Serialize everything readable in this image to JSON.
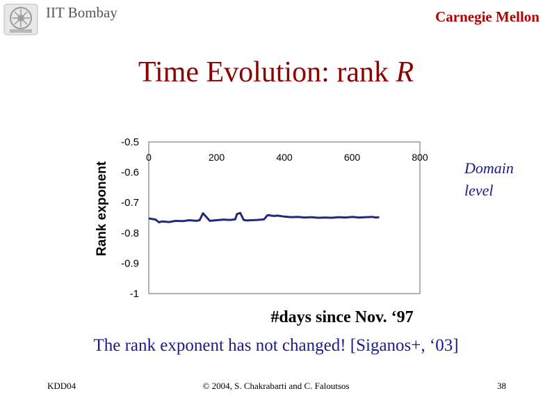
{
  "header": {
    "institution": "IIT Bombay",
    "organization": "Carnegie Mellon"
  },
  "slide": {
    "title_main": "Time Evolution: rank ",
    "title_var": "R",
    "annotation_line1": "Domain",
    "annotation_line2": "level",
    "x_caption": "#days since Nov. ‘97",
    "conclusion": "The rank exponent has not changed! [Siganos+, ‘03]"
  },
  "footer": {
    "left": "KDD04",
    "center": "© 2004, S. Chakrabarti and C. Faloutsos",
    "right": "38"
  },
  "colors": {
    "title": "#8b0000",
    "organization": "#b00000",
    "series": "#1f2a7a",
    "annotation": "#1a1a8c"
  },
  "chart_data": {
    "type": "line",
    "title": "",
    "xlabel": "#days since Nov. ‘97",
    "ylabel": "Rank exponent",
    "xlim": [
      0,
      800
    ],
    "ylim": [
      -1,
      -0.5
    ],
    "x_ticks": [
      0,
      200,
      400,
      600,
      800
    ],
    "x_tick_labels": [
      "0",
      "200",
      "400",
      "600",
      "800"
    ],
    "y_ticks": [
      -0.5,
      -0.6,
      -0.7,
      -0.8,
      -0.9,
      -1
    ],
    "y_tick_labels": [
      "-0.5",
      "-0.6",
      "-0.7",
      "-0.8",
      "-0.9",
      "-1"
    ],
    "x_axis_position": "top",
    "grid": false,
    "series": [
      {
        "x": [
          0,
          10,
          20,
          30,
          40,
          60,
          80,
          100,
          120,
          140,
          150,
          160,
          180,
          200,
          220,
          240,
          255,
          260,
          270,
          280,
          290,
          300,
          320,
          340,
          350,
          355,
          360,
          370,
          380,
          400,
          420,
          440,
          460,
          480,
          500,
          520,
          540,
          560,
          580,
          600,
          620,
          640,
          660,
          670,
          680
        ],
        "y": [
          -0.752,
          -0.754,
          -0.756,
          -0.765,
          -0.762,
          -0.764,
          -0.76,
          -0.761,
          -0.758,
          -0.76,
          -0.758,
          -0.735,
          -0.76,
          -0.758,
          -0.756,
          -0.757,
          -0.755,
          -0.738,
          -0.734,
          -0.757,
          -0.759,
          -0.758,
          -0.757,
          -0.755,
          -0.742,
          -0.741,
          -0.743,
          -0.744,
          -0.743,
          -0.746,
          -0.748,
          -0.747,
          -0.749,
          -0.748,
          -0.75,
          -0.749,
          -0.75,
          -0.748,
          -0.749,
          -0.747,
          -0.749,
          -0.748,
          -0.747,
          -0.749,
          -0.748
        ]
      }
    ]
  }
}
